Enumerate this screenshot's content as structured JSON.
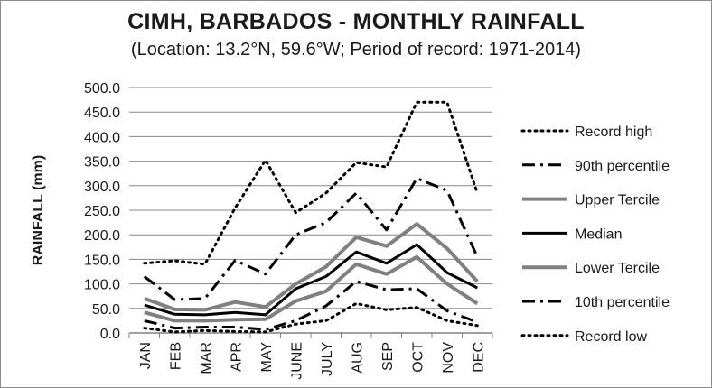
{
  "chart_data": {
    "type": "line",
    "title": "CIMH, BARBADOS - MONTHLY RAINFALL",
    "subtitle": "(Location: 13.2°N, 59.6°W; Period of record: 1971-2014)",
    "xlabel": "",
    "ylabel": "RAINFALL (mm)",
    "categories": [
      "JAN",
      "FEB",
      "MAR",
      "APR",
      "MAY",
      "JUNE",
      "JULY",
      "AUG",
      "SEP",
      "OCT",
      "NOV",
      "DEC"
    ],
    "ylim": [
      0,
      500
    ],
    "yticks": [
      "0.0",
      "50.0",
      "100.0",
      "150.0",
      "200.0",
      "250.0",
      "300.0",
      "350.0",
      "400.0",
      "450.0",
      "500.0"
    ],
    "grid": true,
    "legend_position": "right",
    "series": [
      {
        "name": "Record high",
        "values": [
          142,
          147,
          140,
          255,
          352,
          245,
          285,
          347,
          338,
          470,
          470,
          285
        ],
        "color": "#000000",
        "style": "dotted",
        "width": 3
      },
      {
        "name": "90th percentile",
        "values": [
          115,
          68,
          70,
          148,
          120,
          200,
          225,
          285,
          210,
          315,
          290,
          155
        ],
        "color": "#000000",
        "style": "dashdot",
        "width": 3
      },
      {
        "name": "Upper Tercile",
        "values": [
          70,
          48,
          47,
          63,
          53,
          100,
          135,
          195,
          177,
          222,
          172,
          105
        ],
        "color": "#808080",
        "style": "solid",
        "width": 4
      },
      {
        "name": "Median",
        "values": [
          57,
          38,
          37,
          42,
          37,
          90,
          115,
          165,
          142,
          180,
          123,
          92
        ],
        "color": "#000000",
        "style": "solid",
        "width": 3
      },
      {
        "name": "Lower Tercile",
        "values": [
          42,
          25,
          25,
          27,
          28,
          65,
          85,
          140,
          120,
          155,
          100,
          60
        ],
        "color": "#808080",
        "style": "solid",
        "width": 4
      },
      {
        "name": "10th percentile",
        "values": [
          25,
          10,
          12,
          12,
          7,
          25,
          55,
          105,
          88,
          90,
          45,
          22
        ],
        "color": "#000000",
        "style": "dashdot",
        "width": 3
      },
      {
        "name": "Record low",
        "values": [
          10,
          2,
          5,
          3,
          2,
          18,
          25,
          60,
          47,
          52,
          25,
          15
        ],
        "color": "#000000",
        "style": "dotted",
        "width": 3
      }
    ]
  }
}
